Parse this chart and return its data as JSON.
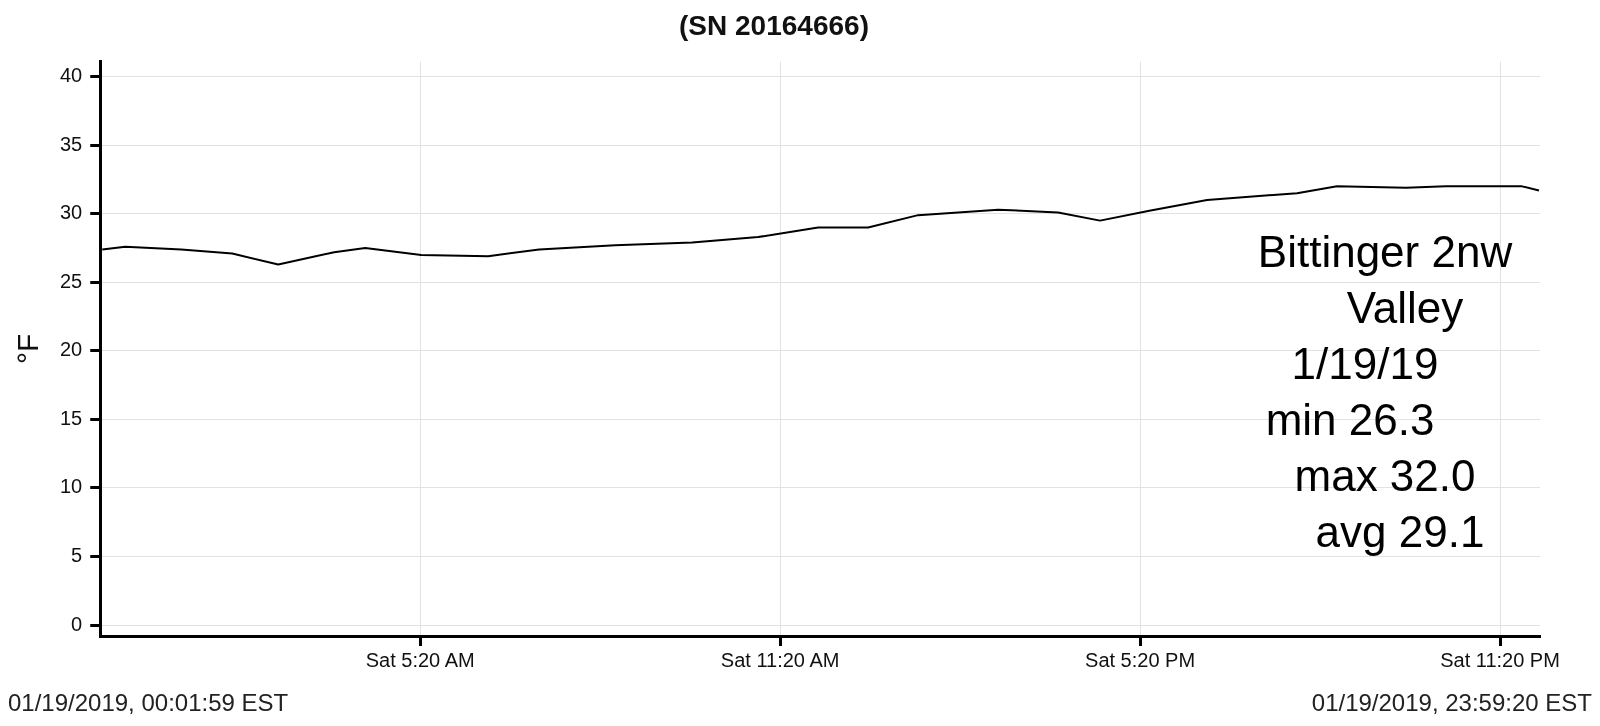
{
  "chart_data": {
    "type": "line",
    "title": "(SN 20164666)",
    "ylabel": "°F",
    "x": [
      "2019-01-19T00:02",
      "2019-01-19T00:25",
      "2019-01-19T01:21",
      "2019-01-19T02:12",
      "2019-01-19T02:58",
      "2019-01-19T03:54",
      "2019-01-19T04:25",
      "2019-01-19T05:21",
      "2019-01-19T06:28",
      "2019-01-19T07:19",
      "2019-01-19T08:35",
      "2019-01-19T09:52",
      "2019-01-19T10:58",
      "2019-01-19T11:58",
      "2019-01-19T12:48",
      "2019-01-19T13:38",
      "2019-01-19T14:58",
      "2019-01-19T15:58",
      "2019-01-19T16:40",
      "2019-01-19T17:28",
      "2019-01-19T18:27",
      "2019-01-19T19:57",
      "2019-01-19T20:37",
      "2019-01-19T21:46",
      "2019-01-19T22:26",
      "2019-01-19T23:42",
      "2019-01-19T23:59"
    ],
    "series": [
      {
        "color": "#000000",
        "values": [
          27.4,
          27.6,
          27.4,
          27.1,
          26.3,
          27.2,
          27.5,
          27.0,
          26.9,
          27.4,
          27.7,
          27.9,
          28.3,
          29.0,
          29.0,
          29.9,
          30.3,
          30.1,
          29.5,
          30.2,
          31.0,
          31.5,
          32.0,
          31.9,
          32.0,
          32.0,
          31.7
        ]
      }
    ],
    "xlim": [
      "2019-01-19T00:00",
      "2019-01-20T00:00"
    ],
    "xticks": [
      {
        "value": "2019-01-19T05:20",
        "label": "Sat 5:20 AM"
      },
      {
        "value": "2019-01-19T11:20",
        "label": "Sat 11:20 AM"
      },
      {
        "value": "2019-01-19T17:20",
        "label": "Sat 5:20 PM"
      },
      {
        "value": "2019-01-19T23:20",
        "label": "Sat 11:20 PM"
      }
    ],
    "ylim": [
      -0.8,
      41.1
    ],
    "yticks": [
      0,
      5,
      10,
      15,
      20,
      25,
      30,
      35,
      40
    ],
    "grid": true,
    "marker": "none",
    "line_style": "solid",
    "annotations": [
      "01/19/2019, 00:01:59 EST",
      "01/19/2019, 23:59:20 EST",
      "Bittinger 2nw",
      "Valley",
      "1/19/19",
      "min 26.3",
      "max 32.0",
      "avg 29.1"
    ]
  }
}
